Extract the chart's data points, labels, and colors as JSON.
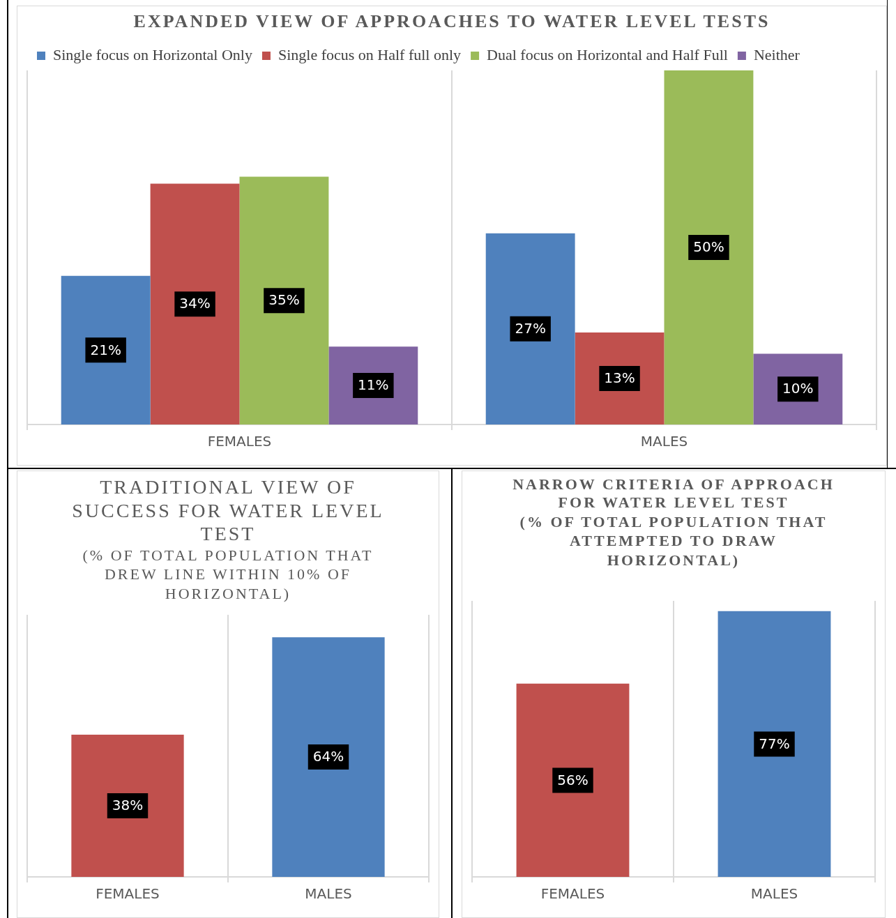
{
  "chart_data": [
    {
      "type": "bar",
      "title": "EXPANDED VIEW OF APPROACHES TO WATER LEVEL TESTS",
      "categories": [
        "FEMALES",
        "MALES"
      ],
      "legend": "top",
      "grid": "x",
      "tick_labels": "x",
      "series": [
        {
          "name": "Single focus on Horizontal Only",
          "color": "#4f81bd",
          "values": [
            21,
            27
          ],
          "value_labels": [
            "21%",
            "27%"
          ]
        },
        {
          "name": "Single focus on Half full only",
          "color": "#c0504d",
          "values": [
            34,
            13
          ],
          "value_labels": [
            "34%",
            "13%"
          ]
        },
        {
          "name": "Dual focus on Horizontal and Half Full",
          "color": "#9bbb59",
          "values": [
            35,
            50
          ],
          "value_labels": [
            "35%",
            "50%"
          ]
        },
        {
          "name": "Neither",
          "color": "#8064a2",
          "values": [
            11,
            10
          ],
          "value_labels": [
            "11%",
            "10%"
          ]
        }
      ]
    },
    {
      "type": "bar",
      "title": "TRADITIONAL VIEW OF SUCCESS FOR WATER LEVEL TEST",
      "subtitle": "(% OF TOTAL POPULATION THAT DREW LINE WITHIN 10% OF HORIZONTAL)",
      "categories": [
        "FEMALES",
        "MALES"
      ],
      "values": [
        38,
        64
      ],
      "colors": [
        "#c0504d",
        "#4f81bd"
      ],
      "value_labels": [
        "38%",
        "64%"
      ],
      "grid": "x",
      "tick_labels": "x"
    },
    {
      "type": "bar",
      "title": "NARROW CRITERIA OF APPROACH FOR WATER LEVEL TEST",
      "subtitle": "(% OF TOTAL POPULATION THAT ATTEMPTED TO DRAW HORIZONTAL)",
      "categories": [
        "FEMALES",
        "MALES"
      ],
      "values": [
        56,
        77
      ],
      "colors": [
        "#c0504d",
        "#4f81bd"
      ],
      "value_labels": [
        "56%",
        "77%"
      ],
      "grid": "x",
      "tick_labels": "x"
    }
  ]
}
